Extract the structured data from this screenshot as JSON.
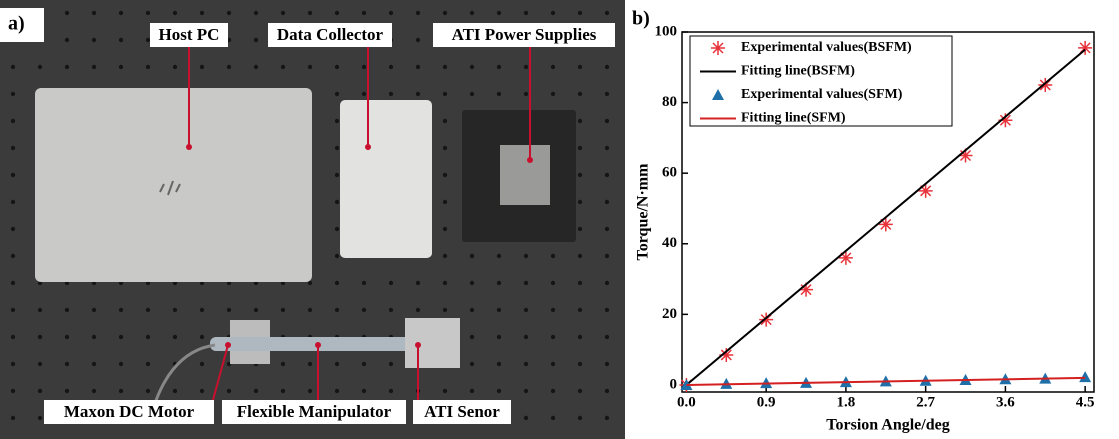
{
  "panels": {
    "a": "a)",
    "b": "b)"
  },
  "photo": {
    "labels": [
      "Host PC",
      "Data Collector",
      "ATI Power Supplies",
      "Maxon DC Motor",
      "Flexible Manipulator",
      "ATI Senor"
    ]
  },
  "chart_data": {
    "type": "scatter",
    "xlabel": "Torsion Angle/deg",
    "ylabel": "Torque/N·mm",
    "xlim": [
      -0.05,
      4.6
    ],
    "ylim": [
      -2,
      100
    ],
    "xticks": [
      {
        "value": 0,
        "label": "0.0"
      },
      0.9,
      1.8,
      2.7,
      3.6,
      4.5
    ],
    "yticks": [
      0,
      20,
      40,
      60,
      80,
      100
    ],
    "legend": "upper left",
    "series": [
      {
        "name": "Experimental values(BSFM)",
        "color": "#e8323a",
        "style": "star",
        "x": [
          0,
          0.45,
          0.9,
          1.35,
          1.8,
          2.25,
          2.7,
          3.15,
          3.6,
          4.05,
          4.5
        ],
        "values": [
          0,
          8.5,
          18.5,
          27,
          36,
          45.5,
          55,
          65,
          75,
          85,
          95.5
        ]
      },
      {
        "name": "Fitting line(BSFM)",
        "color": "#000000",
        "style": "line",
        "x": [
          0,
          4.5
        ],
        "values": [
          0,
          95
        ]
      },
      {
        "name": "Experimental values(SFM)",
        "color": "#1f6fa8",
        "style": "triangle",
        "x": [
          0,
          0.45,
          0.9,
          1.35,
          1.8,
          2.25,
          2.7,
          3.15,
          3.6,
          4.05,
          4.5
        ],
        "values": [
          0,
          0.3,
          0.5,
          0.6,
          0.8,
          1.0,
          1.2,
          1.4,
          1.6,
          1.8,
          2.2
        ]
      },
      {
        "name": "Fitting line(SFM)",
        "color": "#d42020",
        "style": "line",
        "x": [
          0,
          4.5
        ],
        "values": [
          0,
          2
        ]
      }
    ]
  }
}
